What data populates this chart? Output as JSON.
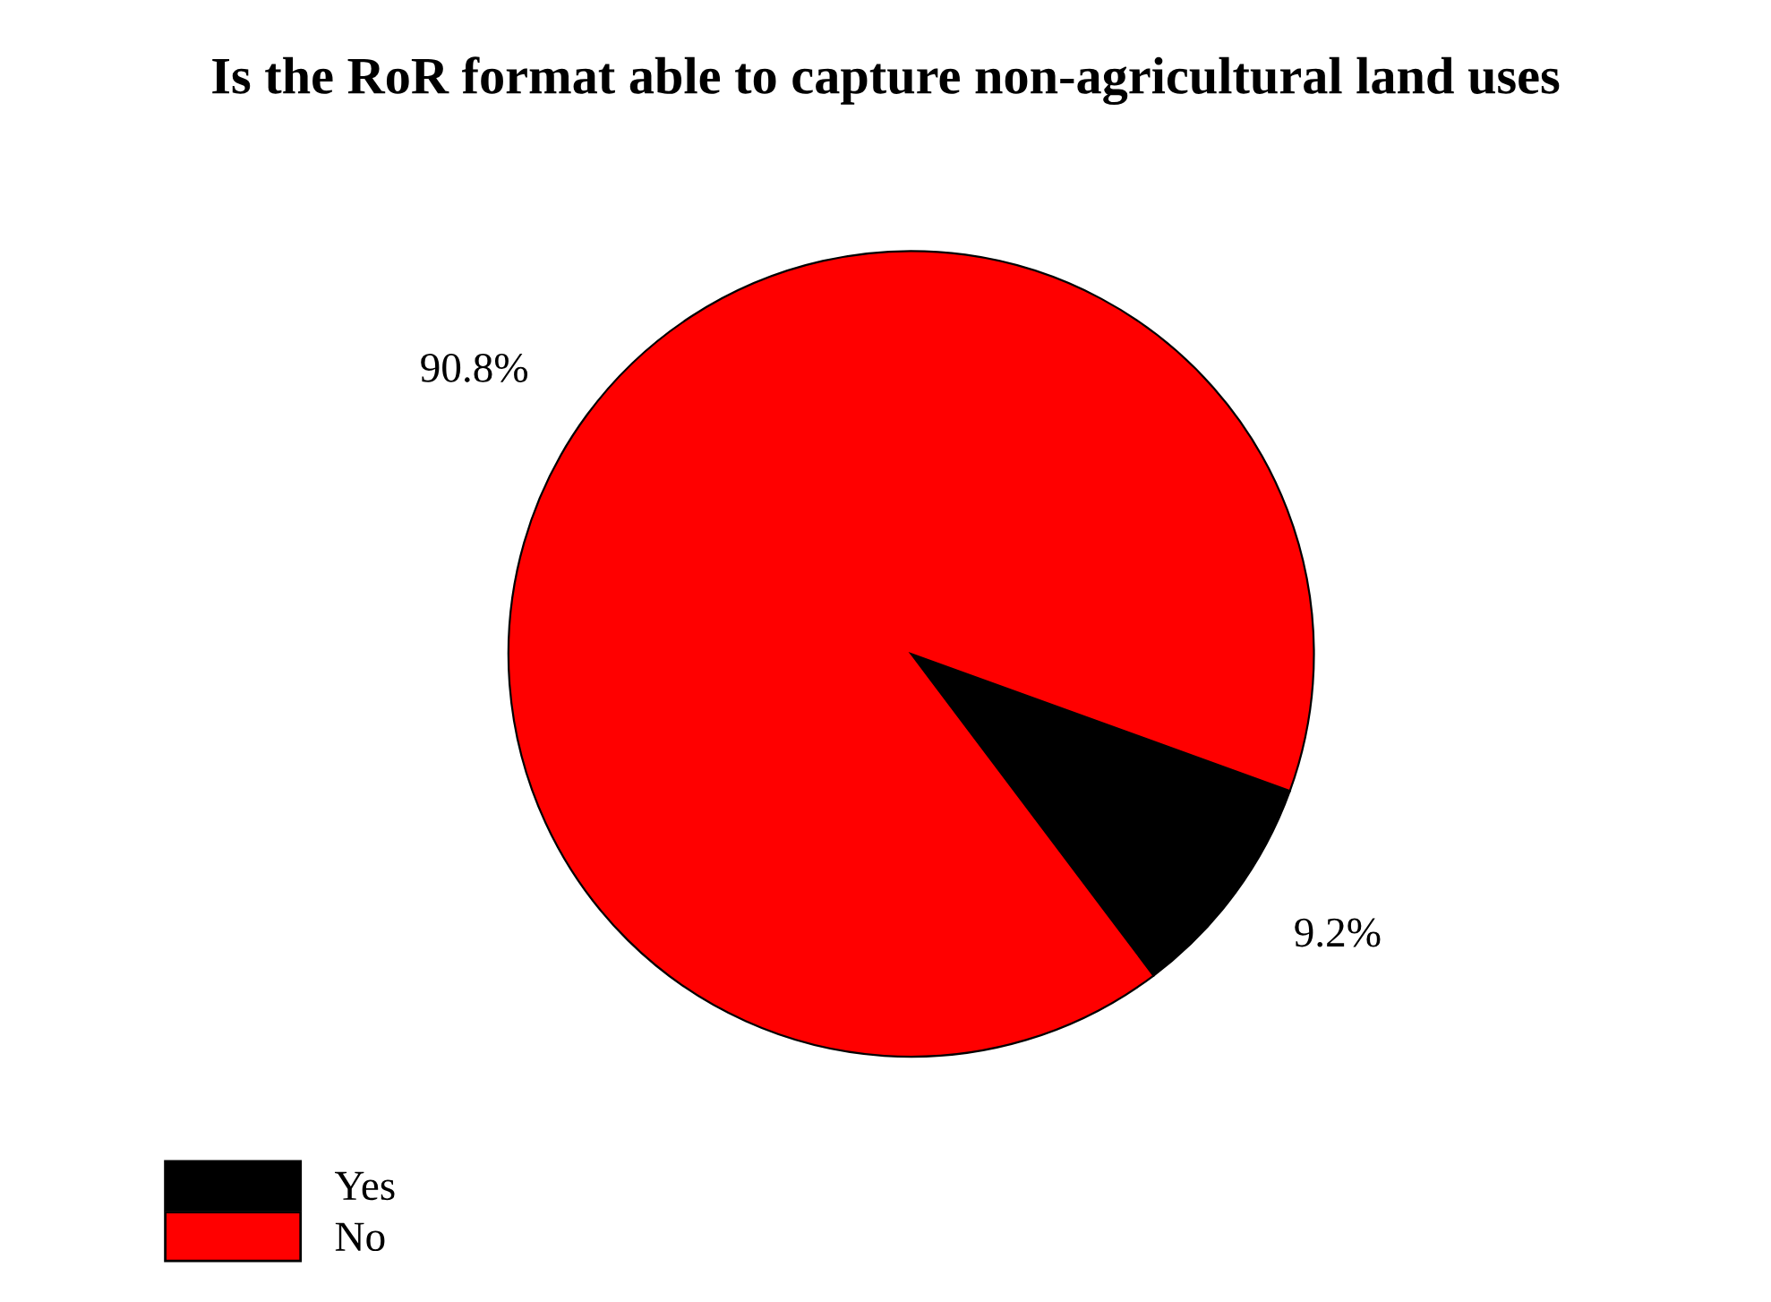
{
  "chart_data": {
    "type": "pie",
    "title": "Is the RoR format able to capture non-agricultural land uses",
    "categories": [
      "Yes",
      "No"
    ],
    "values": [
      9.2,
      90.8
    ],
    "colors": [
      "#000000",
      "#ff0000"
    ],
    "value_labels": [
      "9.2%",
      "90.8%"
    ],
    "legend": "bottom left"
  }
}
